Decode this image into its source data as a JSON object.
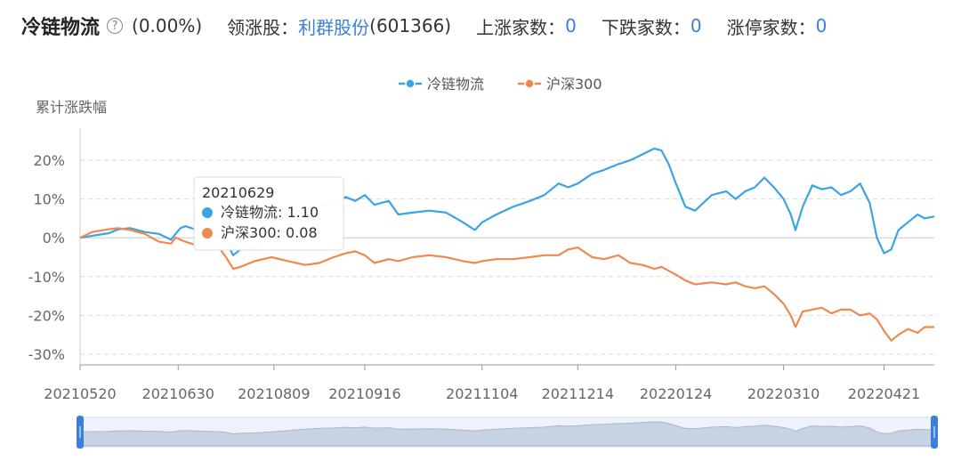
{
  "header": {
    "title": "冷链物流",
    "help_icon": "question-circle-icon",
    "help_glyph": "?",
    "change": "(0.00%)",
    "leader_label": "领涨股：",
    "leader_name": "利群股份",
    "leader_code": "(601366)",
    "up_label": "上涨家数：",
    "up_count": "0",
    "down_label": "下跌家数：",
    "down_count": "0",
    "limit_label": "涨停家数：",
    "limit_count": "0"
  },
  "colors": {
    "series1": "#3ba4e2",
    "series2": "#ee8a4f",
    "grid": "#d9d9d9",
    "link": "#3b7fd9"
  },
  "chart_data": {
    "type": "line",
    "ylabel": "累计涨跌幅",
    "ylim": [
      -30,
      25
    ],
    "yticks": [
      20,
      10,
      0,
      -10,
      -20,
      -30
    ],
    "ytick_labels": [
      "20%",
      "10%",
      "0%",
      "-10%",
      "-20%",
      "-30%"
    ],
    "xlim": [
      "20210520",
      "20220512"
    ],
    "xticks": [
      "20210520",
      "20210630",
      "20210809",
      "20210916",
      "20211104",
      "20211214",
      "20220124",
      "20220310",
      "20220421"
    ],
    "legend_position": "top-center",
    "grid": "horizontal-dashed",
    "series": [
      {
        "name": "冷链物流",
        "points": [
          [
            "20210520",
            0
          ],
          [
            "20210525",
            0.5
          ],
          [
            "20210601",
            1.2
          ],
          [
            "20210605",
            2.2
          ],
          [
            "20210610",
            2.5
          ],
          [
            "20210616",
            1.5
          ],
          [
            "20210622",
            1.0
          ],
          [
            "20210627",
            -0.5
          ],
          [
            "20210629",
            1.1
          ],
          [
            "20210701",
            2.5
          ],
          [
            "20210703",
            3.0
          ],
          [
            "20210708",
            2.0
          ],
          [
            "20210713",
            1.0
          ],
          [
            "20210717",
            0.5
          ],
          [
            "20210720",
            -1.0
          ],
          [
            "20210723",
            -4.5
          ],
          [
            "20210726",
            -3.0
          ],
          [
            "20210801",
            -2.5
          ],
          [
            "20210808",
            0.0
          ],
          [
            "20210815",
            3.0
          ],
          [
            "20210822",
            6.0
          ],
          [
            "20210828",
            8.0
          ],
          [
            "20210903",
            9.0
          ],
          [
            "20210908",
            10.5
          ],
          [
            "20210912",
            9.5
          ],
          [
            "20210916",
            11.0
          ],
          [
            "20210920",
            8.5
          ],
          [
            "20210926",
            9.5
          ],
          [
            "20210930",
            6.0
          ],
          [
            "20211006",
            6.5
          ],
          [
            "20211013",
            7.0
          ],
          [
            "20211020",
            6.5
          ],
          [
            "20211027",
            4.0
          ],
          [
            "20211101",
            2.0
          ],
          [
            "20211104",
            4.0
          ],
          [
            "20211110",
            6.0
          ],
          [
            "20211117",
            8.0
          ],
          [
            "20211124",
            9.5
          ],
          [
            "20211130",
            11.0
          ],
          [
            "20211206",
            14.0
          ],
          [
            "20211210",
            13.0
          ],
          [
            "20211214",
            14.0
          ],
          [
            "20211220",
            16.5
          ],
          [
            "20211225",
            17.5
          ],
          [
            "20211231",
            19.0
          ],
          [
            "20220105",
            20.0
          ],
          [
            "20220110",
            21.5
          ],
          [
            "20220115",
            23.0
          ],
          [
            "20220118",
            22.5
          ],
          [
            "20220121",
            19.0
          ],
          [
            "20220124",
            14.0
          ],
          [
            "20220128",
            8.0
          ],
          [
            "20220201",
            7.0
          ],
          [
            "20220208",
            11.0
          ],
          [
            "20220214",
            12.0
          ],
          [
            "20220218",
            10.0
          ],
          [
            "20220222",
            12.0
          ],
          [
            "20220226",
            13.0
          ],
          [
            "20220302",
            15.5
          ],
          [
            "20220306",
            13.0
          ],
          [
            "20220310",
            10.0
          ],
          [
            "20220313",
            6.0
          ],
          [
            "20220315",
            2.0
          ],
          [
            "20220318",
            8.0
          ],
          [
            "20220322",
            13.5
          ],
          [
            "20220326",
            12.5
          ],
          [
            "20220330",
            13.0
          ],
          [
            "20220403",
            11.0
          ],
          [
            "20220407",
            12.0
          ],
          [
            "20220411",
            14.0
          ],
          [
            "20220415",
            9.0
          ],
          [
            "20220418",
            0.0
          ],
          [
            "20220421",
            -4.0
          ],
          [
            "20220424",
            -3.0
          ],
          [
            "20220427",
            2.0
          ],
          [
            "20220501",
            4.0
          ],
          [
            "20220505",
            6.0
          ],
          [
            "20220508",
            5.0
          ],
          [
            "20220512",
            5.5
          ]
        ]
      },
      {
        "name": "沪深300",
        "points": [
          [
            "20210520",
            0
          ],
          [
            "20210525",
            1.5
          ],
          [
            "20210601",
            2.2
          ],
          [
            "20210605",
            2.5
          ],
          [
            "20210610",
            2.0
          ],
          [
            "20210616",
            1.0
          ],
          [
            "20210622",
            -1.0
          ],
          [
            "20210627",
            -1.5
          ],
          [
            "20210629",
            0.08
          ],
          [
            "20210701",
            -0.5
          ],
          [
            "20210703",
            -1.0
          ],
          [
            "20210708",
            -2.0
          ],
          [
            "20210713",
            -1.8
          ],
          [
            "20210717",
            -2.5
          ],
          [
            "20210720",
            -5.0
          ],
          [
            "20210723",
            -8.0
          ],
          [
            "20210726",
            -7.5
          ],
          [
            "20210801",
            -6.0
          ],
          [
            "20210808",
            -5.0
          ],
          [
            "20210815",
            -6.0
          ],
          [
            "20210822",
            -7.0
          ],
          [
            "20210828",
            -6.5
          ],
          [
            "20210903",
            -5.0
          ],
          [
            "20210908",
            -4.0
          ],
          [
            "20210912",
            -3.5
          ],
          [
            "20210916",
            -4.5
          ],
          [
            "20210920",
            -6.5
          ],
          [
            "20210926",
            -5.5
          ],
          [
            "20210930",
            -6.0
          ],
          [
            "20211006",
            -5.0
          ],
          [
            "20211013",
            -4.5
          ],
          [
            "20211020",
            -5.0
          ],
          [
            "20211027",
            -6.0
          ],
          [
            "20211101",
            -6.5
          ],
          [
            "20211104",
            -6.0
          ],
          [
            "20211110",
            -5.5
          ],
          [
            "20211117",
            -5.5
          ],
          [
            "20211124",
            -5.0
          ],
          [
            "20211130",
            -4.5
          ],
          [
            "20211206",
            -4.5
          ],
          [
            "20211210",
            -3.0
          ],
          [
            "20211214",
            -2.5
          ],
          [
            "20211220",
            -5.0
          ],
          [
            "20211225",
            -5.5
          ],
          [
            "20211231",
            -4.5
          ],
          [
            "20220105",
            -6.5
          ],
          [
            "20220110",
            -7.0
          ],
          [
            "20220115",
            -8.0
          ],
          [
            "20220118",
            -7.5
          ],
          [
            "20220121",
            -8.5
          ],
          [
            "20220124",
            -9.5
          ],
          [
            "20220128",
            -11.0
          ],
          [
            "20220201",
            -12.0
          ],
          [
            "20220208",
            -11.5
          ],
          [
            "20220214",
            -12.0
          ],
          [
            "20220218",
            -11.5
          ],
          [
            "20220222",
            -12.5
          ],
          [
            "20220226",
            -13.0
          ],
          [
            "20220302",
            -12.5
          ],
          [
            "20220306",
            -14.5
          ],
          [
            "20220310",
            -17.0
          ],
          [
            "20220313",
            -20.0
          ],
          [
            "20220315",
            -23.0
          ],
          [
            "20220318",
            -19.0
          ],
          [
            "20220322",
            -18.5
          ],
          [
            "20220326",
            -18.0
          ],
          [
            "20220330",
            -19.5
          ],
          [
            "20220403",
            -18.5
          ],
          [
            "20220407",
            -18.5
          ],
          [
            "20220411",
            -20.0
          ],
          [
            "20220415",
            -19.5
          ],
          [
            "20220418",
            -21.0
          ],
          [
            "20220421",
            -24.0
          ],
          [
            "20220424",
            -26.5
          ],
          [
            "20220427",
            -25.0
          ],
          [
            "20220501",
            -23.5
          ],
          [
            "20220505",
            -24.5
          ],
          [
            "20220508",
            -23.0
          ],
          [
            "20220512",
            -23.0
          ]
        ]
      }
    ],
    "tooltip": {
      "date": "20210629",
      "rows": [
        {
          "name": "冷链物流",
          "sep": ": ",
          "value": "1.10"
        },
        {
          "name": "沪深300",
          "sep": ": ",
          "value": "0.08"
        }
      ]
    }
  }
}
